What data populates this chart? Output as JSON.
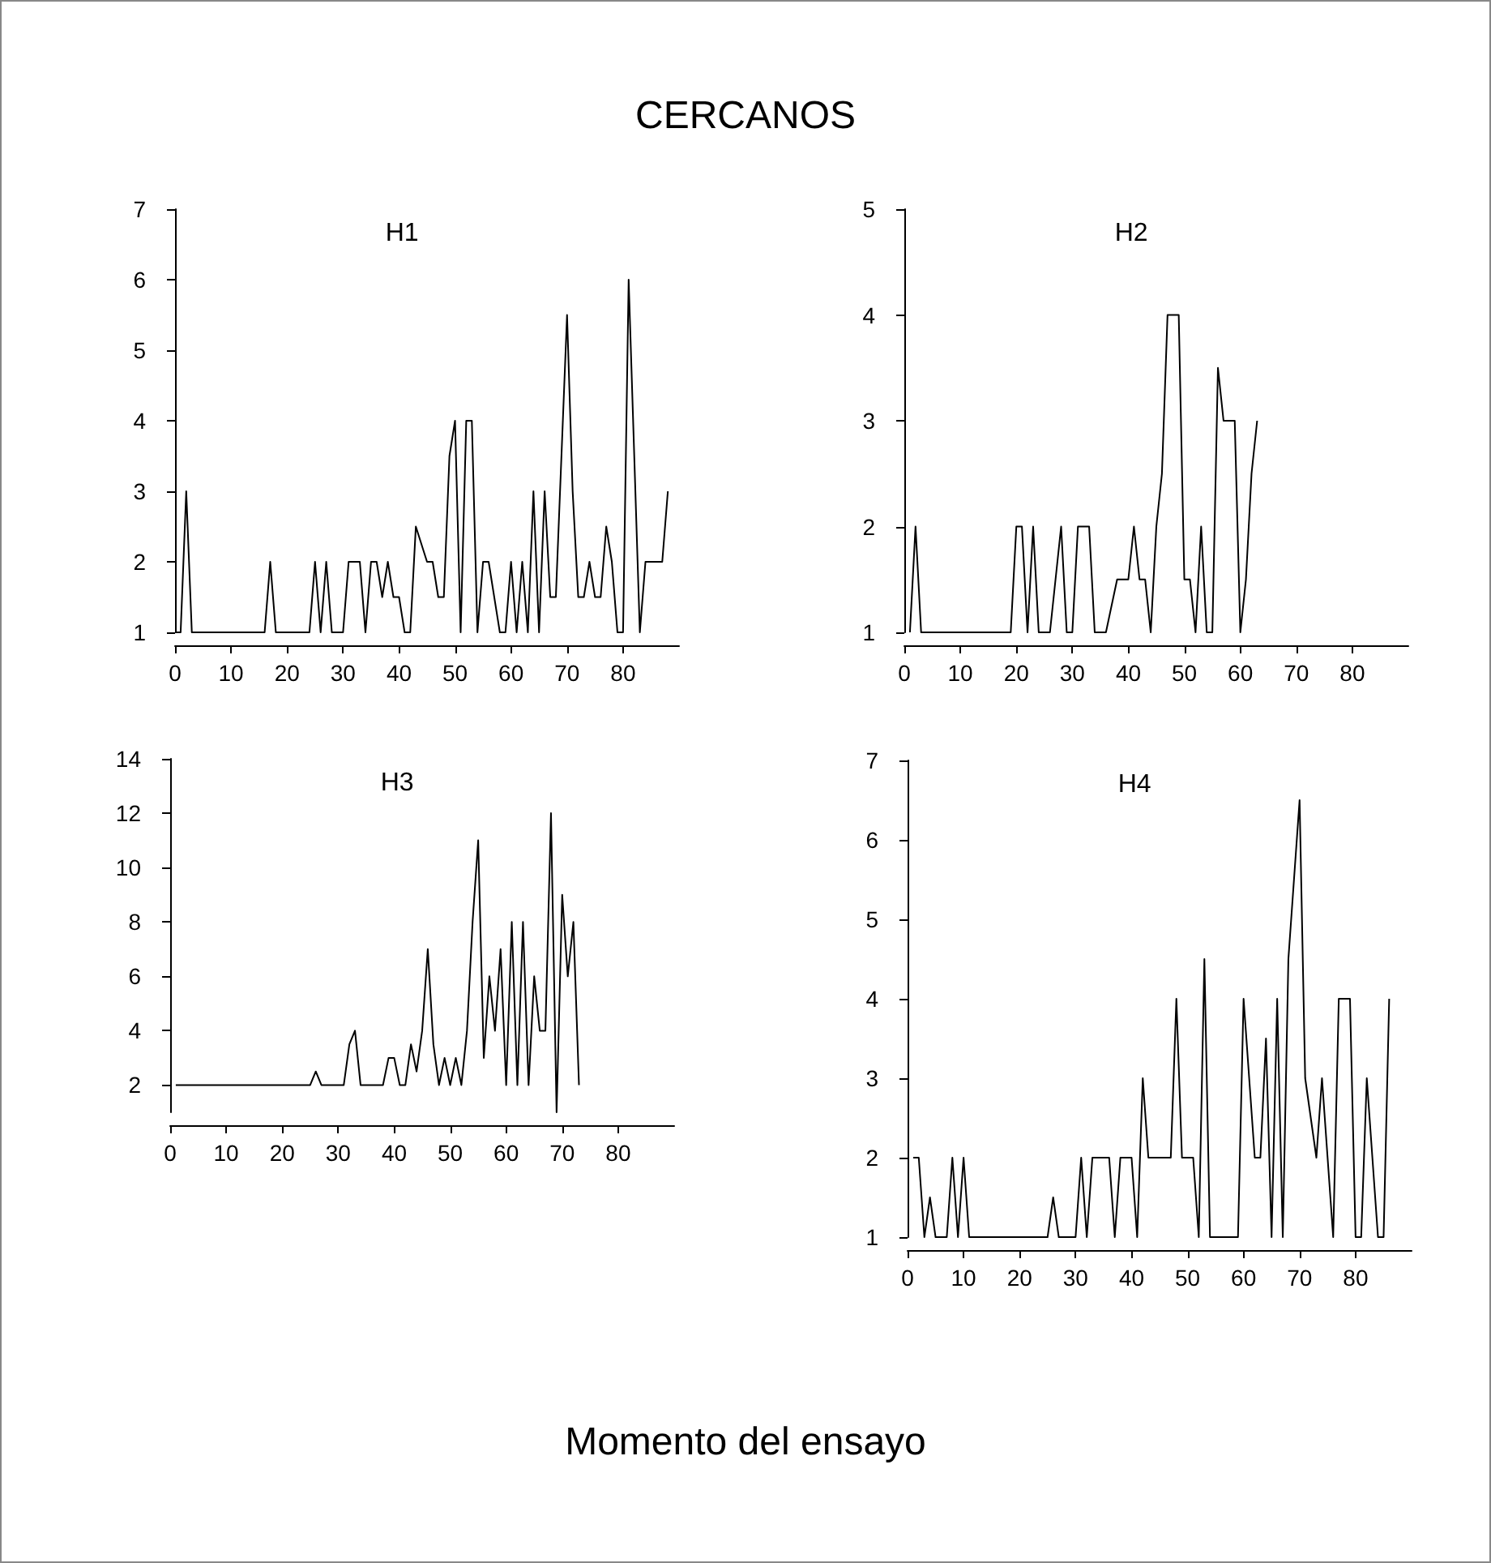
{
  "chart_data": [
    {
      "type": "line",
      "title": "H1",
      "annotations": [
        "CERCANOS"
      ],
      "marker": "none",
      "xlim": [
        0,
        90
      ],
      "ylim": [
        1,
        7
      ],
      "xticks": [
        0,
        10,
        20,
        30,
        40,
        50,
        60,
        70,
        80
      ],
      "yticks": [
        1,
        2,
        3,
        4,
        5,
        6,
        7
      ],
      "series": [
        {
          "color": "#000000",
          "x": [
            0,
            1,
            2,
            3,
            4,
            5,
            7,
            8,
            9,
            10,
            11,
            12,
            13,
            14,
            15,
            16,
            17,
            18,
            20,
            21,
            22,
            23,
            24,
            25,
            26,
            27,
            28,
            29,
            30,
            31,
            33,
            34,
            35,
            36,
            37,
            38,
            39,
            40,
            41,
            42,
            43,
            45,
            46,
            47,
            48,
            49,
            50,
            51,
            52,
            53,
            54,
            55,
            56,
            58,
            59,
            60,
            61,
            62,
            63,
            64,
            65,
            66,
            67,
            68,
            70,
            71,
            72,
            73,
            74,
            75,
            76,
            77,
            78,
            79,
            80,
            81,
            83,
            84,
            85,
            86,
            87,
            88
          ],
          "values": [
            1,
            1,
            3,
            1,
            1,
            1,
            1,
            1,
            1,
            1,
            1,
            1,
            1,
            1,
            1,
            1,
            2,
            1,
            1,
            1,
            1,
            1,
            1,
            2,
            1,
            2,
            1,
            1,
            1,
            2,
            2,
            1,
            2,
            2,
            1.5,
            2,
            1.5,
            1.5,
            1,
            1,
            2.5,
            2,
            2,
            1.5,
            1.5,
            3.5,
            4,
            1,
            4,
            4,
            1,
            2,
            2,
            1,
            1,
            2,
            1,
            2,
            1,
            3,
            1,
            3,
            1.5,
            1.5,
            5.5,
            3,
            1.5,
            1.5,
            2,
            1.5,
            1.5,
            2.5,
            2,
            1,
            1,
            6,
            1,
            2,
            2,
            2,
            2,
            3
          ]
        }
      ]
    },
    {
      "type": "line",
      "title": "H2",
      "marker": "none",
      "xlim": [
        0,
        90
      ],
      "ylim": [
        1,
        5
      ],
      "xticks": [
        0,
        10,
        20,
        30,
        40,
        50,
        60,
        70,
        80
      ],
      "yticks": [
        1,
        2,
        3,
        4,
        5
      ],
      "series": [
        {
          "color": "#000000",
          "x": [
            1,
            2,
            3,
            4,
            5,
            7,
            8,
            9,
            10,
            11,
            12,
            13,
            14,
            15,
            16,
            18,
            19,
            20,
            21,
            22,
            23,
            24,
            25,
            26,
            28,
            29,
            30,
            31,
            32,
            33,
            34,
            35,
            36,
            38,
            39,
            40,
            41,
            42,
            43,
            44,
            45,
            46,
            47,
            49,
            50,
            51,
            52,
            53,
            54,
            55,
            56,
            57,
            59,
            60,
            61,
            62,
            63
          ],
          "values": [
            1,
            2,
            1,
            1,
            1,
            1,
            1,
            1,
            1,
            1,
            1,
            1,
            1,
            1,
            1,
            1,
            1,
            2,
            2,
            1,
            2,
            1,
            1,
            1,
            2,
            1,
            1,
            2,
            2,
            2,
            1,
            1,
            1,
            1.5,
            1.5,
            1.5,
            2,
            1.5,
            1.5,
            1,
            2,
            2.5,
            4,
            4,
            1.5,
            1.5,
            1,
            2,
            1,
            1,
            3.5,
            3,
            3,
            1,
            1.5,
            2.5,
            3
          ]
        }
      ]
    },
    {
      "type": "line",
      "title": "H3",
      "xlabel": "Momento del ensayo",
      "marker": "none",
      "xlim": [
        0,
        90
      ],
      "ylim": [
        1,
        14
      ],
      "xticks": [
        0,
        10,
        20,
        30,
        40,
        50,
        60,
        70,
        80
      ],
      "yticks": [
        2,
        4,
        6,
        8,
        10,
        12,
        14
      ],
      "series": [
        {
          "color": "#000000",
          "x": [
            1,
            2,
            3,
            4,
            5,
            6,
            7,
            8,
            9,
            10,
            11,
            12,
            13,
            14,
            15,
            16,
            17,
            18,
            19,
            20,
            21,
            22,
            23,
            24,
            25,
            26,
            27,
            28,
            29,
            30,
            31,
            32,
            33,
            34,
            35,
            36,
            37,
            38,
            39,
            40,
            41,
            42,
            43,
            44,
            45,
            46,
            47,
            48,
            49,
            50,
            51,
            52,
            53,
            54,
            55,
            56,
            57,
            58,
            59,
            60,
            61,
            62,
            63,
            64,
            65,
            66,
            67,
            68,
            69,
            70,
            71,
            72,
            73
          ],
          "values": [
            2,
            2,
            2,
            2,
            2,
            2,
            2,
            2,
            2,
            2,
            2,
            2,
            2,
            2,
            2,
            2,
            2,
            2,
            2,
            2,
            2,
            2,
            2,
            2,
            2,
            2.5,
            2,
            2,
            2,
            2,
            2,
            3.5,
            4,
            2,
            2,
            2,
            2,
            2,
            3,
            3,
            2,
            2,
            3.5,
            2.5,
            4,
            7,
            3.5,
            2,
            3,
            2,
            3,
            2,
            4,
            8,
            11,
            3,
            6,
            4,
            7,
            2,
            8,
            2,
            8,
            2,
            6,
            4,
            4,
            12,
            1,
            9,
            6,
            8,
            2
          ]
        }
      ]
    },
    {
      "type": "line",
      "title": "H4",
      "marker": "none",
      "xlim": [
        0,
        90
      ],
      "ylim": [
        1,
        7
      ],
      "xticks": [
        0,
        10,
        20,
        30,
        40,
        50,
        60,
        70,
        80
      ],
      "yticks": [
        1,
        2,
        3,
        4,
        5,
        6,
        7
      ],
      "series": [
        {
          "color": "#000000",
          "x": [
            1,
            2,
            3,
            4,
            5,
            7,
            8,
            9,
            10,
            11,
            12,
            13,
            14,
            15,
            16,
            18,
            19,
            20,
            21,
            22,
            23,
            24,
            25,
            26,
            27,
            29,
            30,
            31,
            32,
            33,
            34,
            35,
            36,
            37,
            38,
            40,
            41,
            42,
            43,
            44,
            45,
            46,
            47,
            48,
            49,
            51,
            52,
            53,
            54,
            55,
            56,
            57,
            58,
            59,
            60,
            62,
            63,
            64,
            65,
            66,
            67,
            68,
            69,
            70,
            71,
            73,
            74,
            75,
            76,
            77,
            78,
            79,
            80,
            81,
            82,
            84,
            85,
            86
          ],
          "values": [
            2,
            2,
            1,
            1.5,
            1,
            1,
            2,
            1,
            2,
            1,
            1,
            1,
            1,
            1,
            1,
            1,
            1,
            1,
            1,
            1,
            1,
            1,
            1,
            1.5,
            1,
            1,
            1,
            2,
            1,
            2,
            2,
            2,
            2,
            1,
            2,
            2,
            1,
            3,
            2,
            2,
            2,
            2,
            2,
            4,
            2,
            2,
            1,
            4.5,
            1,
            1,
            1,
            1,
            1,
            1,
            4,
            2,
            2,
            3.5,
            1,
            4,
            1,
            4.5,
            5.5,
            6.5,
            3,
            2,
            3,
            2,
            1,
            4,
            4,
            4,
            1,
            1,
            3,
            1,
            1,
            4
          ]
        }
      ]
    }
  ]
}
